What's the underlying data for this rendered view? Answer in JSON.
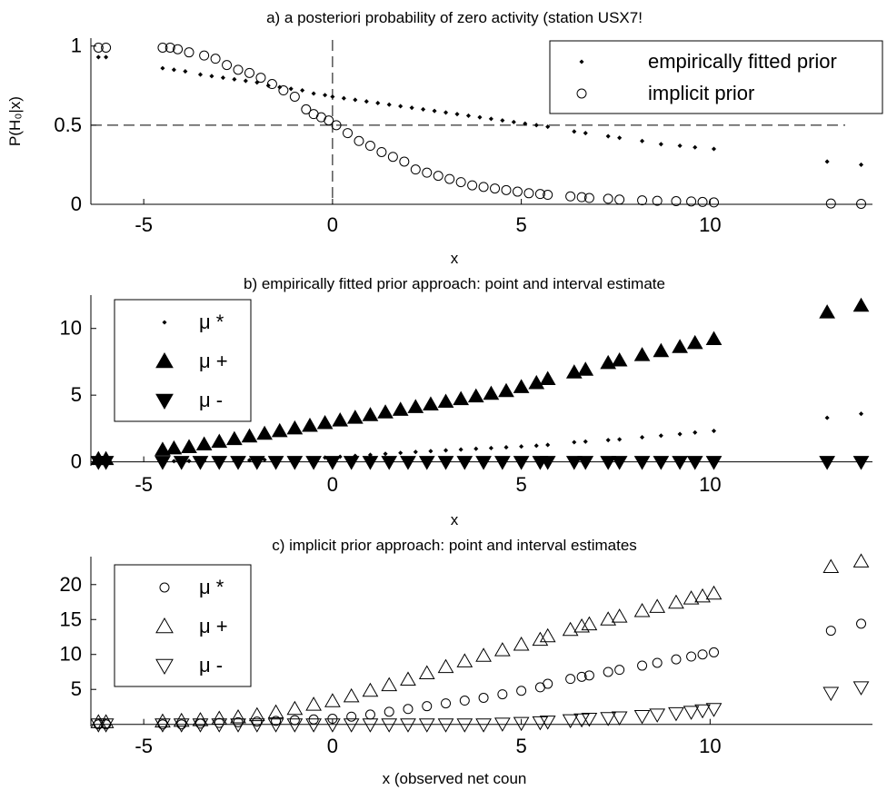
{
  "chart_data": [
    {
      "type": "scatter",
      "title": "a) a posteriori probability of zero activity (station USX7!",
      "xlabel": "x",
      "ylabel": "P(H₀|x)",
      "xlim": [
        -6.4,
        14.3
      ],
      "ylim": [
        0,
        1.05
      ],
      "xticks": [
        -5,
        0,
        5,
        10
      ],
      "yticks": [
        0,
        0.5,
        1
      ],
      "grid": false,
      "legend_position": "top-right",
      "reference_lines": {
        "horizontal": 0.5,
        "vertical": 0
      },
      "series": [
        {
          "name": "empirically fitted prior",
          "marker": "dot",
          "x": [
            -6.2,
            -6.0,
            -4.5,
            -4.2,
            -3.9,
            -3.5,
            -3.2,
            -2.9,
            -2.6,
            -2.3,
            -2.0,
            -1.7,
            -1.4,
            -1.1,
            -0.8,
            -0.5,
            -0.2,
            0.0,
            0.3,
            0.6,
            0.9,
            1.2,
            1.5,
            1.8,
            2.1,
            2.4,
            2.7,
            3.0,
            3.3,
            3.6,
            3.9,
            4.2,
            4.5,
            4.8,
            5.1,
            5.4,
            5.7,
            6.4,
            6.7,
            7.3,
            7.6,
            8.2,
            8.7,
            9.2,
            9.6,
            10.1,
            13.1,
            14.0
          ],
          "y": [
            0.93,
            0.93,
            0.86,
            0.85,
            0.84,
            0.82,
            0.81,
            0.8,
            0.79,
            0.78,
            0.77,
            0.75,
            0.74,
            0.73,
            0.72,
            0.7,
            0.69,
            0.68,
            0.67,
            0.66,
            0.65,
            0.64,
            0.63,
            0.62,
            0.61,
            0.6,
            0.59,
            0.58,
            0.57,
            0.56,
            0.55,
            0.54,
            0.53,
            0.52,
            0.51,
            0.5,
            0.49,
            0.46,
            0.45,
            0.43,
            0.42,
            0.4,
            0.38,
            0.37,
            0.36,
            0.35,
            0.27,
            0.25
          ]
        },
        {
          "name": "implicit prior",
          "marker": "circle",
          "x": [
            -6.2,
            -6.0,
            -4.5,
            -4.3,
            -4.1,
            -3.8,
            -3.4,
            -3.1,
            -2.8,
            -2.5,
            -2.2,
            -1.9,
            -1.6,
            -1.3,
            -1.0,
            -0.7,
            -0.5,
            -0.3,
            -0.1,
            0.1,
            0.4,
            0.7,
            1.0,
            1.3,
            1.6,
            1.9,
            2.2,
            2.5,
            2.8,
            3.1,
            3.4,
            3.7,
            4.0,
            4.3,
            4.6,
            4.9,
            5.2,
            5.5,
            5.7,
            6.3,
            6.6,
            6.8,
            7.3,
            7.6,
            8.2,
            8.6,
            9.1,
            9.5,
            9.8,
            10.1,
            13.2,
            14.0
          ],
          "y": [
            0.99,
            0.99,
            0.99,
            0.99,
            0.98,
            0.96,
            0.94,
            0.92,
            0.88,
            0.85,
            0.83,
            0.8,
            0.76,
            0.72,
            0.68,
            0.6,
            0.57,
            0.55,
            0.53,
            0.5,
            0.45,
            0.4,
            0.37,
            0.33,
            0.3,
            0.27,
            0.22,
            0.2,
            0.18,
            0.16,
            0.14,
            0.12,
            0.11,
            0.1,
            0.09,
            0.08,
            0.07,
            0.065,
            0.06,
            0.05,
            0.045,
            0.04,
            0.035,
            0.03,
            0.025,
            0.022,
            0.02,
            0.018,
            0.015,
            0.012,
            0.005,
            0.003
          ]
        }
      ]
    },
    {
      "type": "scatter",
      "title": "b) empirically fitted prior approach: point and interval estimate",
      "xlabel": "x",
      "ylabel": "",
      "xlim": [
        -6.4,
        14.3
      ],
      "ylim": [
        -0.3,
        12.5
      ],
      "xticks": [
        -5,
        0,
        5,
        10
      ],
      "yticks": [
        0,
        5,
        10
      ],
      "grid": false,
      "legend_position": "top-left",
      "series": [
        {
          "name": "μ *",
          "marker": "dot",
          "x": [
            -6.2,
            -6.0,
            -4.5,
            -4.2,
            -3.8,
            -3.4,
            -3.0,
            -2.6,
            -2.2,
            -1.8,
            -1.4,
            -1.0,
            -0.6,
            -0.2,
            0.2,
            0.6,
            1.0,
            1.4,
            1.8,
            2.2,
            2.6,
            3.0,
            3.4,
            3.8,
            4.2,
            4.6,
            5.0,
            5.4,
            5.7,
            6.4,
            6.7,
            7.3,
            7.6,
            8.2,
            8.7,
            9.2,
            9.6,
            10.1,
            13.1,
            14.0
          ],
          "y": [
            0.0,
            0.0,
            0.05,
            0.05,
            0.06,
            0.07,
            0.08,
            0.1,
            0.12,
            0.15,
            0.18,
            0.22,
            0.27,
            0.32,
            0.38,
            0.45,
            0.52,
            0.6,
            0.67,
            0.74,
            0.8,
            0.86,
            0.92,
            0.98,
            1.03,
            1.09,
            1.15,
            1.21,
            1.27,
            1.47,
            1.52,
            1.63,
            1.68,
            1.84,
            1.96,
            2.08,
            2.2,
            2.32,
            3.3,
            3.6
          ]
        },
        {
          "name": "μ +",
          "marker": "triangle-up-filled",
          "x": [
            -6.2,
            -6.0,
            -4.5,
            -4.2,
            -3.8,
            -3.4,
            -3.0,
            -2.6,
            -2.2,
            -1.8,
            -1.4,
            -1.0,
            -0.6,
            -0.2,
            0.2,
            0.6,
            1.0,
            1.4,
            1.8,
            2.2,
            2.6,
            3.0,
            3.4,
            3.8,
            4.2,
            4.6,
            5.0,
            5.4,
            5.7,
            6.4,
            6.7,
            7.3,
            7.6,
            8.2,
            8.7,
            9.2,
            9.6,
            10.1,
            13.1,
            14.0
          ],
          "y": [
            0.2,
            0.2,
            0.9,
            1.0,
            1.1,
            1.3,
            1.5,
            1.7,
            1.9,
            2.1,
            2.3,
            2.5,
            2.7,
            2.9,
            3.1,
            3.3,
            3.5,
            3.7,
            3.9,
            4.1,
            4.3,
            4.5,
            4.7,
            4.9,
            5.1,
            5.3,
            5.6,
            5.9,
            6.2,
            6.7,
            6.9,
            7.4,
            7.6,
            8.0,
            8.3,
            8.6,
            8.9,
            9.2,
            11.2,
            11.7
          ]
        },
        {
          "name": "μ -",
          "marker": "triangle-down-filled",
          "x": [
            -6.2,
            -6.0,
            -4.5,
            -4.0,
            -3.5,
            -3.0,
            -2.5,
            -2.0,
            -1.5,
            -1.0,
            -0.5,
            0.0,
            0.5,
            1.0,
            1.5,
            2.0,
            2.5,
            3.0,
            3.5,
            4.0,
            4.5,
            5.0,
            5.5,
            5.7,
            6.4,
            6.7,
            7.3,
            7.6,
            8.2,
            8.7,
            9.2,
            9.6,
            10.1,
            13.1,
            14.0
          ],
          "y": [
            0,
            0,
            0,
            0,
            0,
            0,
            0,
            0,
            0,
            0,
            0,
            0,
            0,
            0,
            0,
            0,
            0,
            0,
            0,
            0,
            0,
            0,
            0,
            0,
            0,
            0,
            0,
            0,
            0,
            0,
            0,
            0,
            0,
            0,
            0
          ]
        }
      ]
    },
    {
      "type": "scatter",
      "title": "c) implicit prior approach: point and interval estimates",
      "xlabel": "x (observed net coun",
      "ylabel": "",
      "xlim": [
        -6.4,
        14.3
      ],
      "ylim": [
        -0.3,
        24
      ],
      "xticks": [
        -5,
        0,
        5,
        10
      ],
      "yticks": [
        5,
        10,
        15,
        20
      ],
      "grid": false,
      "legend_position": "top-left",
      "series": [
        {
          "name": "μ *",
          "marker": "circle",
          "x": [
            -6.2,
            -6.0,
            -4.5,
            -4.0,
            -3.5,
            -3.0,
            -2.5,
            -2.0,
            -1.5,
            -1.0,
            -0.5,
            0.0,
            0.5,
            1.0,
            1.5,
            2.0,
            2.5,
            3.0,
            3.5,
            4.0,
            4.5,
            5.0,
            5.5,
            5.7,
            6.3,
            6.6,
            6.8,
            7.3,
            7.6,
            8.2,
            8.6,
            9.1,
            9.5,
            9.8,
            10.1,
            13.2,
            14.0
          ],
          "y": [
            0,
            0,
            0,
            0,
            0.1,
            0.2,
            0.3,
            0.4,
            0.5,
            0.6,
            0.7,
            0.8,
            1.1,
            1.4,
            1.8,
            2.2,
            2.6,
            3.0,
            3.4,
            3.8,
            4.3,
            4.8,
            5.3,
            5.8,
            6.5,
            6.8,
            7.0,
            7.5,
            7.8,
            8.4,
            8.8,
            9.3,
            9.7,
            10.0,
            10.3,
            13.4,
            14.4
          ]
        },
        {
          "name": "μ +",
          "marker": "triangle-up",
          "x": [
            -6.2,
            -6.0,
            -4.5,
            -4.0,
            -3.5,
            -3.0,
            -2.5,
            -2.0,
            -1.5,
            -1.0,
            -0.5,
            0.0,
            0.5,
            1.0,
            1.5,
            2.0,
            2.5,
            3.0,
            3.5,
            4.0,
            4.5,
            5.0,
            5.5,
            5.7,
            6.3,
            6.6,
            6.8,
            7.3,
            7.6,
            8.2,
            8.6,
            9.1,
            9.5,
            9.8,
            10.1,
            13.2,
            14.0
          ],
          "y": [
            0.3,
            0.3,
            0.4,
            0.5,
            0.6,
            0.8,
            1.0,
            1.3,
            1.7,
            2.2,
            2.8,
            3.3,
            4.0,
            4.8,
            5.6,
            6.4,
            7.3,
            8.2,
            9.0,
            9.8,
            10.6,
            11.4,
            12.1,
            12.6,
            13.5,
            14.0,
            14.3,
            15.0,
            15.4,
            16.2,
            16.8,
            17.4,
            18.0,
            18.3,
            18.7,
            22.5,
            23.3
          ]
        },
        {
          "name": "μ -",
          "marker": "triangle-down",
          "x": [
            -6.2,
            -6.0,
            -4.5,
            -4.0,
            -3.5,
            -3.0,
            -2.5,
            -2.0,
            -1.5,
            -1.0,
            -0.5,
            0.0,
            0.5,
            1.0,
            1.5,
            2.0,
            2.5,
            3.0,
            3.5,
            4.0,
            4.5,
            5.0,
            5.5,
            5.7,
            6.3,
            6.6,
            6.8,
            7.3,
            7.6,
            8.2,
            8.6,
            9.1,
            9.5,
            9.8,
            10.1,
            13.2,
            14.0
          ],
          "y": [
            0,
            0,
            0,
            0,
            0,
            0,
            0,
            0,
            0,
            0,
            0,
            0,
            0,
            0,
            0,
            0,
            0,
            0,
            0,
            0,
            0.1,
            0.2,
            0.3,
            0.4,
            0.6,
            0.7,
            0.8,
            0.9,
            1.0,
            1.2,
            1.4,
            1.6,
            1.8,
            2.0,
            2.2,
            4.5,
            5.3
          ]
        }
      ]
    }
  ]
}
